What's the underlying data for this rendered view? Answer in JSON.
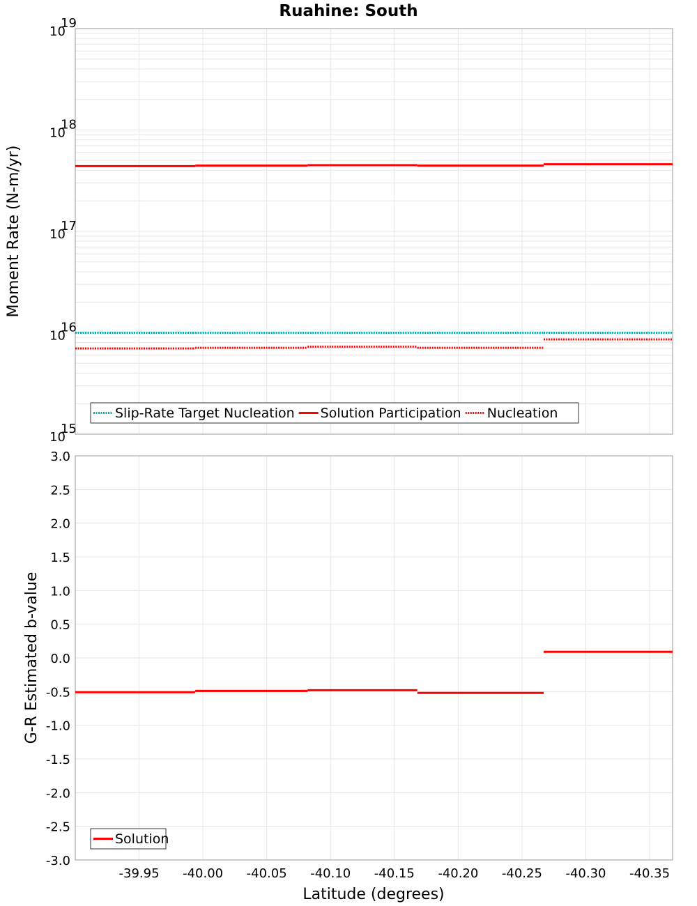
{
  "chart_data": [
    {
      "type": "line",
      "title": "Ruahine: South",
      "xlabel": "Latitude (degrees)",
      "ylabel": "Moment Rate (N-m/yr)",
      "yscale": "log",
      "ylim": [
        1000000000000000.0,
        1e+19
      ],
      "xlim": [
        -39.9,
        -40.368
      ],
      "x_reversed": true,
      "ytick_base": "10",
      "yticks": [
        "15",
        "16",
        "17",
        "18",
        "19"
      ],
      "grid": true,
      "legend_placement": "bottom-left",
      "segment_boundaries": [
        -39.9,
        -39.994,
        -40.082,
        -40.168,
        -40.267,
        -40.368
      ],
      "series": [
        {
          "name": "Slip-Rate Target Nucleation",
          "style": "dotted",
          "color": "#00b0b0",
          "values": [
            1e+16,
            1e+16,
            1e+16,
            1e+16,
            1e+16
          ]
        },
        {
          "name": "Solution Participation",
          "style": "solid",
          "color": "#ff0000",
          "values": [
            4.4e+17,
            4.45e+17,
            4.5e+17,
            4.45e+17,
            4.6e+17
          ]
        },
        {
          "name": "Nucleation",
          "style": "dotted",
          "color": "#ff0000",
          "values": [
            7000000000000000.0,
            7100000000000000.0,
            7300000000000000.0,
            7100000000000000.0,
            8600000000000000.0
          ]
        }
      ]
    },
    {
      "type": "line",
      "xlabel": "Latitude (degrees)",
      "ylabel": "G-R Estimated b-value",
      "ylim": [
        -3.0,
        3.0
      ],
      "xlim": [
        -39.9,
        -40.368
      ],
      "x_reversed": true,
      "yticks": [
        "3.0",
        "2.5",
        "2.0",
        "1.5",
        "1.0",
        "0.5",
        "0.0",
        "-0.5",
        "-1.0",
        "-1.5",
        "-2.0",
        "-2.5",
        "-3.0"
      ],
      "xticks": [
        "-39.95",
        "-40.00",
        "-40.05",
        "-40.10",
        "-40.15",
        "-40.20",
        "-40.25",
        "-40.30",
        "-40.35"
      ],
      "grid": true,
      "legend_placement": "bottom-left",
      "segment_boundaries": [
        -39.9,
        -39.994,
        -40.082,
        -40.168,
        -40.267,
        -40.368
      ],
      "series": [
        {
          "name": "Solution",
          "style": "solid",
          "color": "#ff0000",
          "values": [
            -0.51,
            -0.49,
            -0.48,
            -0.52,
            0.09
          ]
        }
      ]
    }
  ]
}
